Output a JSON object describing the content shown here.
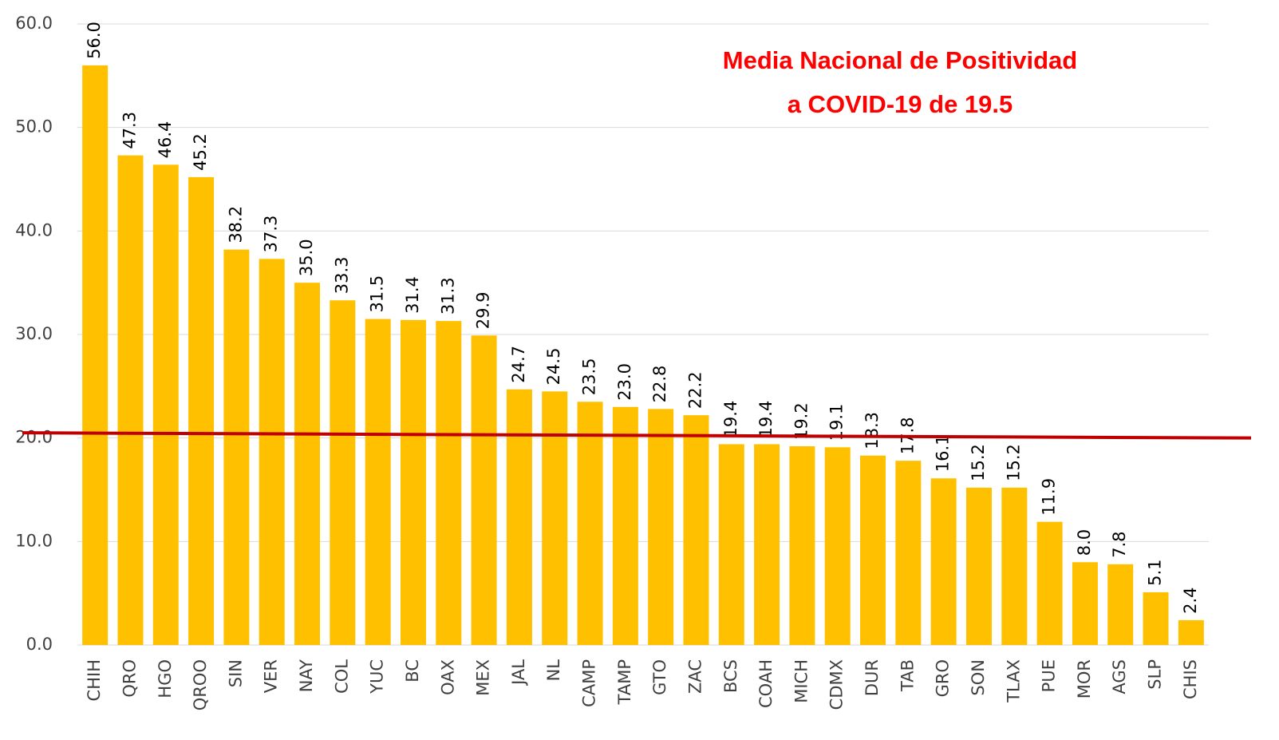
{
  "chart_data": {
    "type": "bar",
    "annotation": [
      "Media Nacional de Positividad",
      "a COVID-19  de 19.5"
    ],
    "categories": [
      "CHIH",
      "QRO",
      "HGO",
      "QROO",
      "SIN",
      "VER",
      "NAY",
      "COL",
      "YUC",
      "BC",
      "OAX",
      "MEX",
      "JAL",
      "NL",
      "CAMP",
      "TAMP",
      "GTO",
      "ZAC",
      "BCS",
      "COAH",
      "MICH",
      "CDMX",
      "DUR",
      "TAB",
      "GRO",
      "SON",
      "TLAX",
      "PUE",
      "MOR",
      "AGS",
      "SLP",
      "CHIS"
    ],
    "values": [
      56,
      47.3,
      46.4,
      45.2,
      38.2,
      37.3,
      35,
      33.3,
      31.5,
      31.4,
      31.3,
      29.9,
      24.7,
      24.5,
      23.5,
      23,
      22.8,
      22.2,
      19.4,
      19.4,
      19.2,
      19.1,
      18.3,
      17.8,
      16.1,
      15.2,
      15.2,
      11.9,
      8,
      7.8,
      5.1,
      2.4
    ],
    "value_labels": [
      "56.0",
      "47.3",
      "46.4",
      "45.2",
      "38.2",
      "37.3",
      "35.0",
      "33.3",
      "31.5",
      "31.4",
      "31.3",
      "29.9",
      "24.7",
      "24.5",
      "23.5",
      "23.0",
      "22.8",
      "22.2",
      "19.4",
      "19.4",
      "19.2",
      "19.1",
      "18.3",
      "17.8",
      "16.1",
      "15.2",
      "15.2",
      "11.9",
      "8.0",
      "7.8",
      "5.1",
      "2.4"
    ],
    "color": "#ffc000",
    "ylim": [
      0,
      60
    ],
    "yticks": [
      {
        "value": 0,
        "label": "0.0"
      },
      {
        "value": 10,
        "label": "10.0"
      },
      {
        "value": 20,
        "label": "20.0"
      },
      {
        "value": 30,
        "label": "30.0"
      },
      {
        "value": 40,
        "label": "40.0"
      },
      {
        "value": 50,
        "label": "50.0"
      },
      {
        "value": 60,
        "label": "60.0"
      }
    ],
    "grid": true,
    "reference_line": {
      "values": [
        20.5,
        20.0
      ],
      "color": "#c00000"
    }
  }
}
